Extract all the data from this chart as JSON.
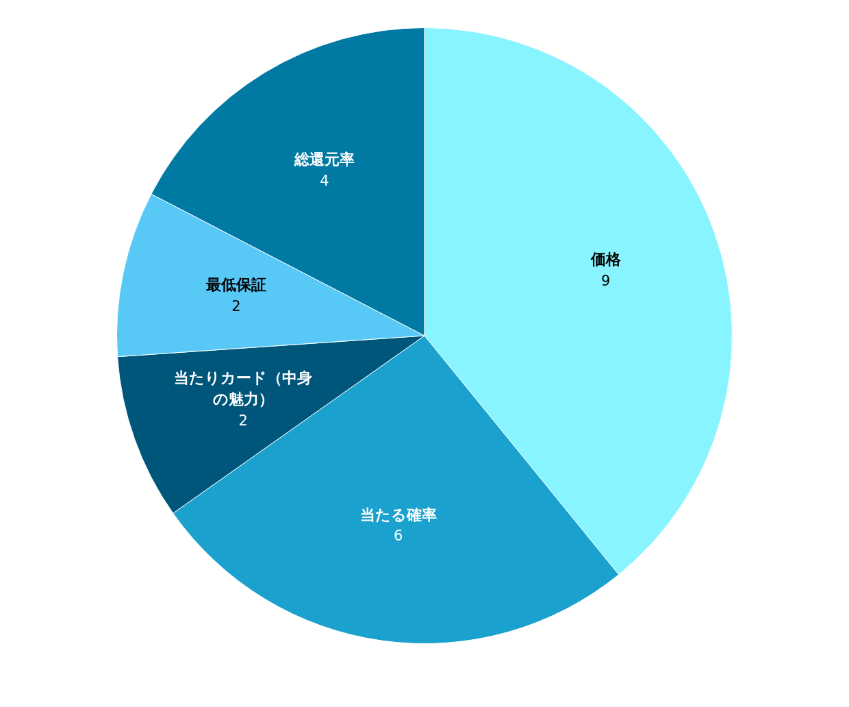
{
  "chart_data": {
    "type": "pie",
    "categories": [
      "価格",
      "当たる確率",
      "当たりカード（中身の魅力）",
      "最低保証",
      "総還元率"
    ],
    "values": [
      9,
      6,
      2,
      2,
      4
    ],
    "colors": [
      "#88f4ff",
      "#1aa1cd",
      "#00557a",
      "#58c9f6",
      "#0079a3"
    ],
    "data_labels": true,
    "legend": false
  }
}
